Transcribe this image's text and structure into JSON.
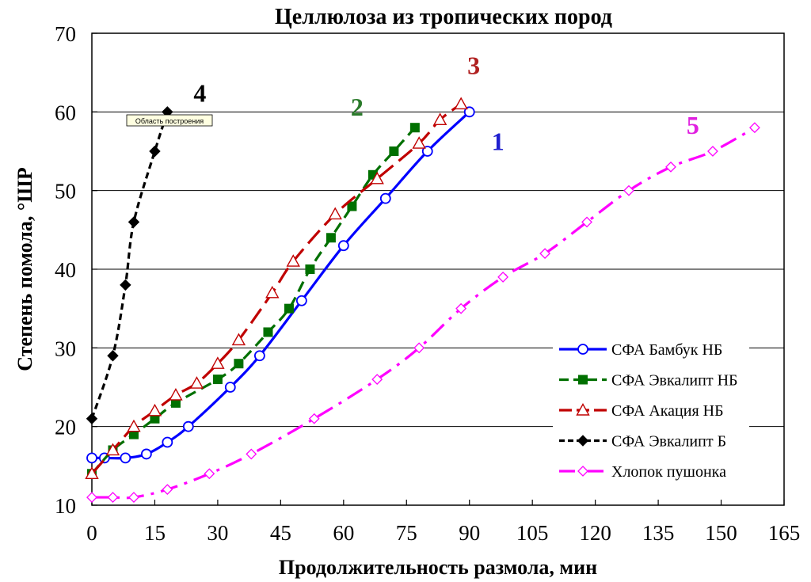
{
  "chart_data": {
    "type": "line",
    "title": "Целлюлоза из тропических пород",
    "xlabel": "Продолжительность размола, мин",
    "ylabel": "Степень помола, °ШР",
    "xlim": [
      0,
      165
    ],
    "ylim": [
      10,
      70
    ],
    "x_ticks": [
      0,
      15,
      30,
      45,
      60,
      75,
      90,
      105,
      120,
      135,
      150,
      165
    ],
    "y_ticks": [
      10,
      20,
      30,
      40,
      50,
      60,
      70
    ],
    "grid": "horizontal",
    "legend_position": "right",
    "tooltip": "Область построения",
    "series": [
      {
        "name": "СФА Бамбук НБ",
        "label": "1",
        "color": "#0000ff",
        "label_color": "#1f1fcf",
        "dash": "solid",
        "marker": "circle-open",
        "points": [
          [
            0,
            16
          ],
          [
            3,
            16
          ],
          [
            8,
            16
          ],
          [
            13,
            16.5
          ],
          [
            18,
            18
          ],
          [
            23,
            20
          ],
          [
            33,
            25
          ],
          [
            40,
            29
          ],
          [
            50,
            36
          ],
          [
            60,
            43
          ],
          [
            70,
            49
          ],
          [
            80,
            55
          ],
          [
            90,
            60
          ]
        ]
      },
      {
        "name": "СФА Эвкалипт НБ",
        "label": "2",
        "color": "#007000",
        "label_color": "#2a7a2a",
        "dash": "dash",
        "marker": "square-filled",
        "points": [
          [
            0,
            14
          ],
          [
            5,
            17
          ],
          [
            10,
            19
          ],
          [
            15,
            21
          ],
          [
            20,
            23
          ],
          [
            30,
            26
          ],
          [
            35,
            28
          ],
          [
            42,
            32
          ],
          [
            47,
            35
          ],
          [
            52,
            40
          ],
          [
            57,
            44
          ],
          [
            62,
            48
          ],
          [
            67,
            52
          ],
          [
            72,
            55
          ],
          [
            77,
            58
          ]
        ]
      },
      {
        "name": "СФА Акация НБ",
        "label": "3",
        "color": "#c00000",
        "label_color": "#b02020",
        "dash": "longdash",
        "marker": "triangle-open",
        "points": [
          [
            0,
            14
          ],
          [
            5,
            17
          ],
          [
            10,
            20
          ],
          [
            15,
            22
          ],
          [
            20,
            24
          ],
          [
            25,
            25.5
          ],
          [
            30,
            28
          ],
          [
            35,
            31
          ],
          [
            43,
            37
          ],
          [
            48,
            41
          ],
          [
            58,
            47
          ],
          [
            68,
            51.5
          ],
          [
            78,
            56
          ],
          [
            83,
            59
          ],
          [
            88,
            61
          ]
        ]
      },
      {
        "name": "СФА Эвкалипт Б",
        "label": "4",
        "color": "#000000",
        "label_color": "#000000",
        "dash": "shortdash",
        "marker": "diamond-filled",
        "points": [
          [
            0,
            21
          ],
          [
            5,
            29
          ],
          [
            8,
            38
          ],
          [
            10,
            46
          ],
          [
            15,
            55
          ],
          [
            18,
            60
          ]
        ]
      },
      {
        "name": "Хлопок пушонка",
        "label": "5",
        "color": "#ff00ff",
        "label_color": "#e020e0",
        "dash": "dashdot",
        "marker": "diamond-open",
        "points": [
          [
            0,
            11
          ],
          [
            5,
            11
          ],
          [
            10,
            11
          ],
          [
            18,
            12
          ],
          [
            28,
            14
          ],
          [
            38,
            16.5
          ],
          [
            53,
            21
          ],
          [
            68,
            26
          ],
          [
            78,
            30
          ],
          [
            88,
            35
          ],
          [
            98,
            39
          ],
          [
            108,
            42
          ],
          [
            118,
            46
          ],
          [
            128,
            50
          ],
          [
            138,
            53
          ],
          [
            148,
            55
          ],
          [
            158,
            58
          ]
        ]
      }
    ]
  }
}
